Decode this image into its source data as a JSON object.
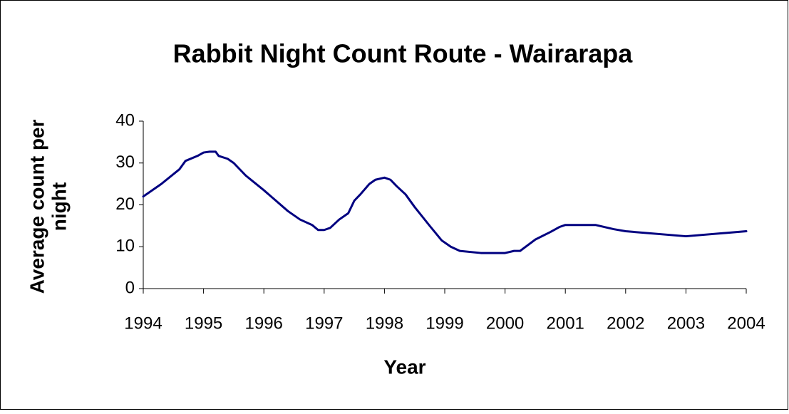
{
  "chart_data": {
    "type": "line",
    "title": "Rabbit Night Count Route - Wairarapa",
    "xlabel": "Year",
    "ylabel": "Average count per night",
    "x": [
      1994.0,
      1994.3,
      1994.6,
      1994.7,
      1994.9,
      1995.0,
      1995.1,
      1995.2,
      1995.25,
      1995.4,
      1995.5,
      1995.7,
      1996.0,
      1996.2,
      1996.4,
      1996.6,
      1996.8,
      1996.9,
      1997.0,
      1997.1,
      1997.25,
      1997.4,
      1997.5,
      1997.6,
      1997.75,
      1997.85,
      1998.0,
      1998.1,
      1998.2,
      1998.35,
      1998.5,
      1998.75,
      1998.95,
      1999.1,
      1999.25,
      1999.6,
      2000.0,
      2000.15,
      2000.25,
      2000.5,
      2000.75,
      2000.9,
      2001.0,
      2001.5,
      2001.8,
      2002.0,
      2003.0,
      2004.0
    ],
    "series": [
      {
        "name": "Average count per night",
        "color": "#000080",
        "values": [
          22,
          25,
          28.5,
          30.5,
          31.7,
          32.5,
          32.7,
          32.7,
          31.7,
          31,
          30,
          27,
          23.5,
          21,
          18.5,
          16.5,
          15.2,
          14,
          14,
          14.5,
          16.5,
          18,
          21,
          22.5,
          25,
          26,
          26.5,
          26,
          24.5,
          22.5,
          19.5,
          15,
          11.5,
          10,
          9,
          8.5,
          8.5,
          9,
          9,
          11.7,
          13.5,
          14.7,
          15.2,
          15.2,
          14.2,
          13.7,
          12.5,
          13.7
        ]
      }
    ],
    "xlim": [
      1994,
      2004
    ],
    "xticks": [
      1994,
      1995,
      1996,
      1997,
      1998,
      1999,
      2000,
      2001,
      2002,
      2003,
      2004
    ],
    "ylim": [
      0,
      40
    ],
    "yticks": [
      0,
      10,
      20,
      30,
      40
    ],
    "grid": false
  }
}
